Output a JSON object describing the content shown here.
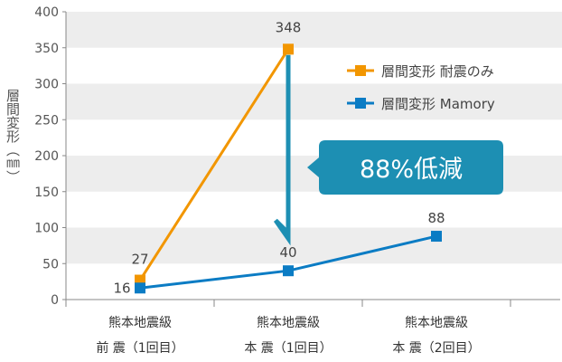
{
  "chart_data": {
    "type": "line",
    "ylabel": "層間変形（㎜）",
    "ylim": [
      0,
      400
    ],
    "yticks": [
      0,
      50,
      100,
      150,
      200,
      250,
      300,
      350,
      400
    ],
    "grid": "horizontal bands",
    "legend_placement": "top-right",
    "categories": [
      [
        "熊本地震級",
        "前 震（1回目）"
      ],
      [
        "熊本地震級",
        "本 震（1回目）"
      ],
      [
        "熊本地震級",
        "本 震（2回目）"
      ]
    ],
    "series": [
      {
        "name": "層間変形 耐震のみ",
        "color": "#f29600",
        "values": [
          27,
          348,
          null
        ],
        "labels": [
          "27",
          "348",
          ""
        ]
      },
      {
        "name": "層間変形 Mamory",
        "color": "#0b7cc4",
        "values": [
          16,
          40,
          88
        ],
        "labels": [
          "16",
          "40",
          "88"
        ]
      }
    ],
    "annotation": {
      "text": "88%低減",
      "arrow_from": 348,
      "arrow_to": 40,
      "color": "#1d8fb3"
    }
  }
}
